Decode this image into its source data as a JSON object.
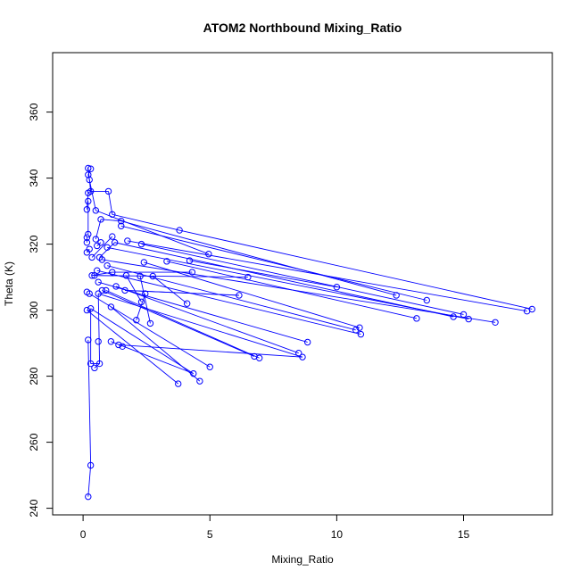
{
  "chart_data": {
    "type": "line",
    "title": "ATOM2 Northbound Mixing_Ratio",
    "xlabel": "Mixing_Ratio",
    "ylabel": "Theta (K)",
    "xlim": [
      -1.2,
      18.5
    ],
    "ylim": [
      238,
      378
    ],
    "xticks": [
      0,
      5,
      10,
      15
    ],
    "yticks": [
      240,
      260,
      280,
      300,
      320,
      340,
      360
    ],
    "grid": false,
    "legend": "none",
    "series_color": "#0000ff",
    "series": [
      {
        "marker": "open-circle",
        "points": [
          [
            0.2,
            343.0
          ],
          [
            0.3,
            342.8
          ],
          [
            0.2,
            341.0
          ],
          [
            0.25,
            339.5
          ],
          [
            1.0,
            336.0
          ],
          [
            0.3,
            336.0
          ],
          [
            0.2,
            335.5
          ],
          [
            0.2,
            333.0
          ],
          [
            0.5,
            330.2
          ],
          [
            0.15,
            330.5
          ],
          [
            1.15,
            329.0
          ],
          [
            0.7,
            327.5
          ],
          [
            1.5,
            327.0
          ],
          [
            1.5,
            325.5
          ],
          [
            3.8,
            324.2
          ],
          [
            0.2,
            323.0
          ],
          [
            0.15,
            322.0
          ],
          [
            1.15,
            322.3
          ],
          [
            0.5,
            321.5
          ],
          [
            1.25,
            320.5
          ],
          [
            0.15,
            320.5
          ],
          [
            1.75,
            321.0
          ],
          [
            0.7,
            320.5
          ],
          [
            2.3,
            320.0
          ],
          [
            0.55,
            319.5
          ],
          [
            0.95,
            319.0
          ],
          [
            0.25,
            318.5
          ],
          [
            0.15,
            317.5
          ],
          [
            4.95,
            317.0
          ],
          [
            0.35,
            316.0
          ],
          [
            0.65,
            316.0
          ],
          [
            0.75,
            315.3
          ],
          [
            3.3,
            314.8
          ],
          [
            4.2,
            315.0
          ],
          [
            2.4,
            314.5
          ],
          [
            0.95,
            313.5
          ],
          [
            0.55,
            312.0
          ],
          [
            1.15,
            311.5
          ],
          [
            4.3,
            311.5
          ],
          [
            0.35,
            310.5
          ],
          [
            1.7,
            310.5
          ],
          [
            0.45,
            310.5
          ],
          [
            2.75,
            310.3
          ],
          [
            2.25,
            310.3
          ],
          [
            6.5,
            310.0
          ],
          [
            0.6,
            308.5
          ],
          [
            1.3,
            307.2
          ],
          [
            10.0,
            307.0
          ],
          [
            0.75,
            306.0
          ],
          [
            1.65,
            306.0
          ],
          [
            0.9,
            306.0
          ],
          [
            0.15,
            305.5
          ],
          [
            0.6,
            305.0
          ],
          [
            0.25,
            305.0
          ],
          [
            2.45,
            305.0
          ],
          [
            6.15,
            304.5
          ],
          [
            12.35,
            304.5
          ],
          [
            13.55,
            303.0
          ],
          [
            4.1,
            302.0
          ],
          [
            1.1,
            301.0
          ],
          [
            2.3,
            302.5
          ],
          [
            0.3,
            300.5
          ],
          [
            0.15,
            300.0
          ],
          [
            17.7,
            300.3
          ],
          [
            17.5,
            299.7
          ],
          [
            15.0,
            298.7
          ],
          [
            14.6,
            298.0
          ],
          [
            15.2,
            297.3
          ],
          [
            13.15,
            297.5
          ],
          [
            16.25,
            296.3
          ],
          [
            2.1,
            297.0
          ],
          [
            2.65,
            296.0
          ],
          [
            10.9,
            294.7
          ],
          [
            10.75,
            294.0
          ],
          [
            10.95,
            292.7
          ],
          [
            0.2,
            291.0
          ],
          [
            0.6,
            290.5
          ],
          [
            1.1,
            290.5
          ],
          [
            8.85,
            290.3
          ],
          [
            1.4,
            289.5
          ],
          [
            1.55,
            289.0
          ],
          [
            8.5,
            287.0
          ],
          [
            6.75,
            286.0
          ],
          [
            6.95,
            285.5
          ],
          [
            8.65,
            285.8
          ],
          [
            0.65,
            283.8
          ],
          [
            0.3,
            283.8
          ],
          [
            5.0,
            282.8
          ],
          [
            0.45,
            282.5
          ],
          [
            4.35,
            280.8
          ],
          [
            4.6,
            278.5
          ],
          [
            3.75,
            277.7
          ],
          [
            0.3,
            253.0
          ],
          [
            0.2,
            243.5
          ]
        ],
        "connections": [
          [
            [
              0.2,
              343.0
            ],
            [
              0.3,
              336.0
            ]
          ],
          [
            [
              0.3,
              342.8
            ],
            [
              0.2,
              341.0
            ]
          ],
          [
            [
              0.2,
              341.0
            ],
            [
              0.25,
              339.5
            ]
          ],
          [
            [
              0.25,
              339.5
            ],
            [
              0.5,
              330.2
            ]
          ],
          [
            [
              0.3,
              336.0
            ],
            [
              1.0,
              336.0
            ]
          ],
          [
            [
              1.0,
              336.0
            ],
            [
              1.15,
              329.0
            ]
          ],
          [
            [
              0.2,
              335.5
            ],
            [
              0.15,
              330.5
            ]
          ],
          [
            [
              0.2,
              333.0
            ],
            [
              0.2,
              323.0
            ]
          ],
          [
            [
              0.5,
              330.2
            ],
            [
              4.95,
              317.0
            ]
          ],
          [
            [
              1.15,
              329.0
            ],
            [
              3.8,
              324.2
            ]
          ],
          [
            [
              0.7,
              327.5
            ],
            [
              1.5,
              327.0
            ]
          ],
          [
            [
              1.5,
              327.0
            ],
            [
              12.35,
              304.5
            ]
          ],
          [
            [
              1.5,
              325.5
            ],
            [
              13.55,
              303.0
            ]
          ],
          [
            [
              3.8,
              324.2
            ],
            [
              17.7,
              300.3
            ]
          ],
          [
            [
              1.75,
              321.0
            ],
            [
              17.5,
              299.7
            ]
          ],
          [
            [
              2.3,
              320.0
            ],
            [
              15.0,
              298.7
            ]
          ],
          [
            [
              1.25,
              320.5
            ],
            [
              14.6,
              298.0
            ]
          ],
          [
            [
              0.95,
              319.0
            ],
            [
              15.2,
              297.3
            ]
          ],
          [
            [
              0.75,
              315.3
            ],
            [
              16.25,
              296.3
            ]
          ],
          [
            [
              3.3,
              314.8
            ],
            [
              13.15,
              297.5
            ]
          ],
          [
            [
              4.2,
              315.0
            ],
            [
              10.0,
              307.0
            ]
          ],
          [
            [
              2.4,
              314.5
            ],
            [
              10.9,
              294.7
            ]
          ],
          [
            [
              0.95,
              313.5
            ],
            [
              10.75,
              294.0
            ]
          ],
          [
            [
              0.55,
              312.0
            ],
            [
              10.95,
              292.7
            ]
          ],
          [
            [
              0.45,
              310.5
            ],
            [
              6.5,
              310.0
            ]
          ],
          [
            [
              0.6,
              308.5
            ],
            [
              8.85,
              290.3
            ]
          ],
          [
            [
              1.3,
              307.2
            ],
            [
              8.5,
              287.0
            ]
          ],
          [
            [
              0.75,
              306.0
            ],
            [
              6.75,
              286.0
            ]
          ],
          [
            [
              0.9,
              306.0
            ],
            [
              6.95,
              285.5
            ]
          ],
          [
            [
              0.6,
              305.0
            ],
            [
              8.65,
              285.8
            ]
          ],
          [
            [
              1.65,
              306.0
            ],
            [
              6.15,
              304.5
            ]
          ],
          [
            [
              0.25,
              305.0
            ],
            [
              5.0,
              282.8
            ]
          ],
          [
            [
              0.3,
              300.5
            ],
            [
              4.35,
              280.8
            ]
          ],
          [
            [
              1.1,
              301.0
            ],
            [
              4.6,
              278.5
            ]
          ],
          [
            [
              0.15,
              300.0
            ],
            [
              3.75,
              277.7
            ]
          ],
          [
            [
              1.1,
              290.5
            ],
            [
              4.35,
              280.8
            ]
          ],
          [
            [
              1.4,
              289.5
            ],
            [
              8.65,
              285.8
            ]
          ],
          [
            [
              0.2,
              291.0
            ],
            [
              0.3,
              253.0
            ]
          ],
          [
            [
              0.3,
              253.0
            ],
            [
              0.2,
              243.5
            ]
          ],
          [
            [
              0.65,
              283.8
            ],
            [
              0.3,
              283.8
            ]
          ],
          [
            [
              0.45,
              282.5
            ],
            [
              0.65,
              283.8
            ]
          ],
          [
            [
              0.65,
              283.8
            ],
            [
              0.6,
              305.0
            ]
          ],
          [
            [
              0.3,
              283.8
            ],
            [
              0.3,
              300.5
            ]
          ],
          [
            [
              2.1,
              297.0
            ],
            [
              2.45,
              305.0
            ]
          ],
          [
            [
              2.65,
              296.0
            ],
            [
              2.25,
              310.3
            ]
          ],
          [
            [
              4.1,
              302.0
            ],
            [
              2.75,
              310.3
            ]
          ],
          [
            [
              2.3,
              302.5
            ],
            [
              1.7,
              310.5
            ]
          ],
          [
            [
              0.35,
              310.5
            ],
            [
              1.15,
              311.5
            ]
          ],
          [
            [
              0.35,
              316.0
            ],
            [
              1.15,
              322.3
            ]
          ],
          [
            [
              0.65,
              316.0
            ],
            [
              1.25,
              320.5
            ]
          ],
          [
            [
              0.55,
              319.5
            ],
            [
              0.7,
              320.5
            ]
          ],
          [
            [
              0.25,
              318.5
            ],
            [
              0.15,
              317.5
            ]
          ],
          [
            [
              0.15,
              320.5
            ],
            [
              0.15,
              322.0
            ]
          ],
          [
            [
              0.5,
              321.5
            ],
            [
              0.7,
              327.5
            ]
          ],
          [
            [
              0.3,
              336.0
            ],
            [
              0.2,
              335.5
            ]
          ],
          [
            [
              4.3,
              311.5
            ],
            [
              1.15,
              311.5
            ]
          ],
          [
            [
              6.15,
              304.5
            ],
            [
              1.65,
              306.0
            ]
          ]
        ]
      }
    ]
  }
}
